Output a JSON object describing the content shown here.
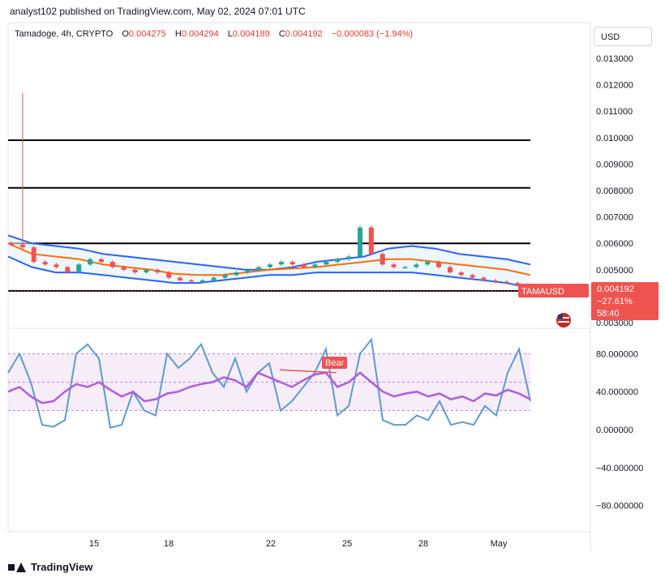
{
  "header": {
    "published": "analyst102 published on TradingView.com, May 02, 2024 07:01 UTC"
  },
  "legend": {
    "symbol": "Tamadoge, 4h, CRYPTO",
    "o_label": "O",
    "o": "0.004275",
    "h_label": "H",
    "h": "0.004294",
    "l_label": "L",
    "l": "0.004189",
    "c_label": "C",
    "c": "0.004192",
    "change": "−0.000083 (−1.94%)"
  },
  "currency": "USD",
  "price_tag": {
    "symbol": "TAMAUSD",
    "price": "0.004192",
    "pct": "−27.61%",
    "timer": "58:40"
  },
  "bear_label": "Bear",
  "footer": {
    "brand": "TradingView"
  },
  "colors": {
    "up": "#26a69a",
    "down": "#ef5350",
    "bb": "#2962ff",
    "basis": "#ff6d00",
    "k": "#5b9bd5",
    "d": "#b05be0",
    "band": "#f3e5f5"
  },
  "chart_data": [
    {
      "type": "candlestick",
      "title": "",
      "ylim": [
        0.0029,
        0.0134
      ],
      "y_ticks": [
        "0.013000",
        "0.012000",
        "0.011000",
        "0.010000",
        "0.009000",
        "0.008000",
        "0.007000",
        "0.006000",
        "0.005000",
        "0.003000"
      ],
      "x_ticks": [
        "15",
        "18",
        "22",
        "25",
        "28",
        "May"
      ],
      "horizontal_levels": [
        0.0099,
        0.0081,
        0.006,
        0.0042
      ],
      "price_series": [
        0.00595,
        0.00585,
        0.0053,
        0.0052,
        0.0051,
        0.0049,
        0.0052,
        0.0054,
        0.0053,
        0.0051,
        0.005,
        0.0049,
        0.005,
        0.0049,
        0.0047,
        0.0046,
        0.00455,
        0.0046,
        0.0047,
        0.0048,
        0.0049,
        0.005,
        0.0051,
        0.0052,
        0.0053,
        0.0052,
        0.0051,
        0.0052,
        0.0053,
        0.0054,
        0.0055,
        0.0066,
        0.0056,
        0.0052,
        0.0051,
        0.0051,
        0.0052,
        0.0053,
        0.0051,
        0.0049,
        0.0048,
        0.0047,
        0.0046,
        0.00455,
        0.0045,
        0.00442,
        0.004192
      ],
      "spike_high": 0.0117,
      "bb_upper": [
        0.0063,
        0.006,
        0.0059,
        0.0058,
        0.0056,
        0.0055,
        0.0054,
        0.0053,
        0.0052,
        0.0051,
        0.005,
        0.005,
        0.0051,
        0.0053,
        0.0054,
        0.0055,
        0.0058,
        0.0059,
        0.0058,
        0.0056,
        0.0055,
        0.0054,
        0.0052
      ],
      "bb_basis": [
        0.006,
        0.0056,
        0.0055,
        0.0054,
        0.0052,
        0.0051,
        0.005,
        0.00485,
        0.0048,
        0.0048,
        0.0049,
        0.005,
        0.00505,
        0.0051,
        0.0052,
        0.0053,
        0.0054,
        0.0054,
        0.0053,
        0.0052,
        0.0051,
        0.005,
        0.0048
      ],
      "bb_lower": [
        0.0055,
        0.0051,
        0.0049,
        0.0049,
        0.0048,
        0.0047,
        0.0046,
        0.0045,
        0.0045,
        0.0046,
        0.0047,
        0.0048,
        0.0048,
        0.0049,
        0.0049,
        0.0049,
        0.0049,
        0.0049,
        0.0048,
        0.0047,
        0.0046,
        0.0045,
        0.0043
      ]
    },
    {
      "type": "line",
      "title": "",
      "ylim": [
        -100,
        100
      ],
      "y_ticks": [
        "80.000000",
        "40.000000",
        "0.000000",
        "−40.000000",
        "−80.000000"
      ],
      "band": [
        20,
        80
      ],
      "series": [
        {
          "values": [
            60,
            80,
            50,
            5,
            3,
            10,
            80,
            90,
            75,
            2,
            5,
            40,
            20,
            15,
            80,
            65,
            75,
            90,
            60,
            45,
            75,
            40,
            60,
            70,
            20,
            30,
            45,
            60,
            85,
            15,
            25,
            80,
            95,
            10,
            5,
            5,
            15,
            10,
            30,
            5,
            8,
            5,
            25,
            15,
            60,
            85,
            30
          ]
        },
        {
          "values": [
            40,
            45,
            35,
            28,
            30,
            40,
            48,
            45,
            50,
            42,
            35,
            40,
            30,
            32,
            38,
            40,
            45,
            48,
            50,
            55,
            52,
            45,
            60,
            55,
            50,
            45,
            52,
            58,
            60,
            45,
            50,
            60,
            50,
            40,
            35,
            38,
            40,
            35,
            38,
            32,
            35,
            30,
            38,
            36,
            42,
            38,
            32
          ]
        }
      ]
    }
  ]
}
